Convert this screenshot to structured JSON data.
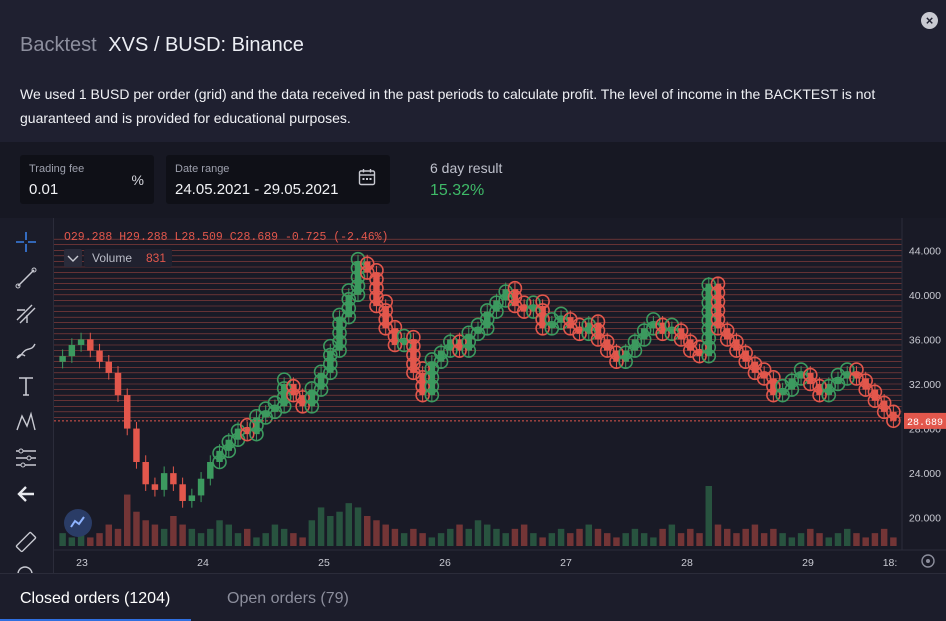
{
  "header": {
    "title_prefix": "Backtest",
    "title_pair": "XVS / BUSD: Binance",
    "close_icon": "close-icon",
    "description": "We used 1 BUSD per order (grid) and the data received in the past periods to calculate profit. The level of income in the BACKTEST is not guaranteed and is provided for educational purposes."
  },
  "params": {
    "trading_fee": {
      "label": "Trading fee",
      "value": "0.01",
      "suffix": "%"
    },
    "date_range": {
      "label": "Date range",
      "value": "24.05.2021 - 29.05.2021",
      "icon": "calendar-icon"
    },
    "result": {
      "label": "6 day result",
      "value": "15.32%"
    }
  },
  "toolbar": {
    "tools": [
      "crosshair-icon",
      "trend-line-icon",
      "fib-tool-icon",
      "brush-icon",
      "text-icon",
      "pattern-icon",
      "measure-lines-icon",
      "back-arrow-icon",
      "ruler-icon",
      "zoom-icon"
    ]
  },
  "chart": {
    "ohlc": {
      "o_label": "O",
      "o": "29.288",
      "h_label": "H",
      "h": "29.288",
      "l_label": "L",
      "l": "28.509",
      "c_label": "C",
      "c": "28.689",
      "change": "-0.725 (-2.46%)"
    },
    "volume_label": "Volume",
    "volume_value": "831",
    "last_price_label": "28.689",
    "colors": {
      "up": "#3c9a5f",
      "down": "#e2574c",
      "grid_line": "#d9564b"
    }
  },
  "chart_data": {
    "type": "candlestick",
    "x_ticks": [
      "23",
      "24",
      "25",
      "26",
      "27",
      "28",
      "29",
      "18:"
    ],
    "y_ticks": [
      "44.000",
      "40.000",
      "36.000",
      "32.000",
      "28.000",
      "24.000",
      "20.000"
    ],
    "ylim": [
      18,
      46
    ],
    "last_price": 28.689,
    "close_series": [
      34.5,
      35.5,
      36,
      35,
      34,
      33,
      31,
      28,
      25,
      23,
      22.5,
      24,
      23,
      21.5,
      22,
      23.5,
      25,
      26,
      27,
      28,
      27.5,
      29,
      29.5,
      30,
      32,
      31,
      30,
      31.5,
      33,
      35,
      38,
      40,
      43,
      42,
      39,
      37,
      35.5,
      36,
      33,
      31,
      34,
      35,
      36,
      35,
      36.5,
      37,
      38.5,
      39.5,
      40.5,
      39,
      38.5,
      39,
      37,
      37.5,
      38,
      37,
      36.5,
      37.5,
      36,
      35,
      34,
      35,
      36,
      37,
      37.5,
      36.5,
      37,
      36,
      35,
      34.5,
      41,
      37,
      36,
      35,
      34,
      33,
      32.5,
      31,
      31.5,
      32.5,
      33,
      32,
      31,
      32,
      32.5,
      33,
      32.5,
      31.5,
      30.5,
      29.5,
      28.7
    ],
    "volume_series": [
      3,
      2,
      4,
      2,
      3,
      5,
      4,
      12,
      8,
      6,
      5,
      4,
      7,
      5,
      4,
      3,
      4,
      6,
      5,
      3,
      4,
      2,
      3,
      5,
      4,
      3,
      2,
      6,
      9,
      7,
      8,
      10,
      9,
      7,
      6,
      5,
      4,
      3,
      4,
      3,
      2,
      3,
      4,
      5,
      4,
      6,
      5,
      4,
      3,
      4,
      5,
      3,
      2,
      3,
      4,
      3,
      4,
      5,
      4,
      3,
      2,
      3,
      4,
      3,
      2,
      4,
      5,
      3,
      4,
      3,
      14,
      5,
      4,
      3,
      4,
      5,
      3,
      4,
      3,
      2,
      3,
      4,
      3,
      2,
      3,
      4,
      3,
      2,
      3,
      4,
      2
    ],
    "grid_lines": true
  },
  "tabs": {
    "closed_orders": "Closed orders (1204)",
    "open_orders": "Open orders (79)"
  }
}
